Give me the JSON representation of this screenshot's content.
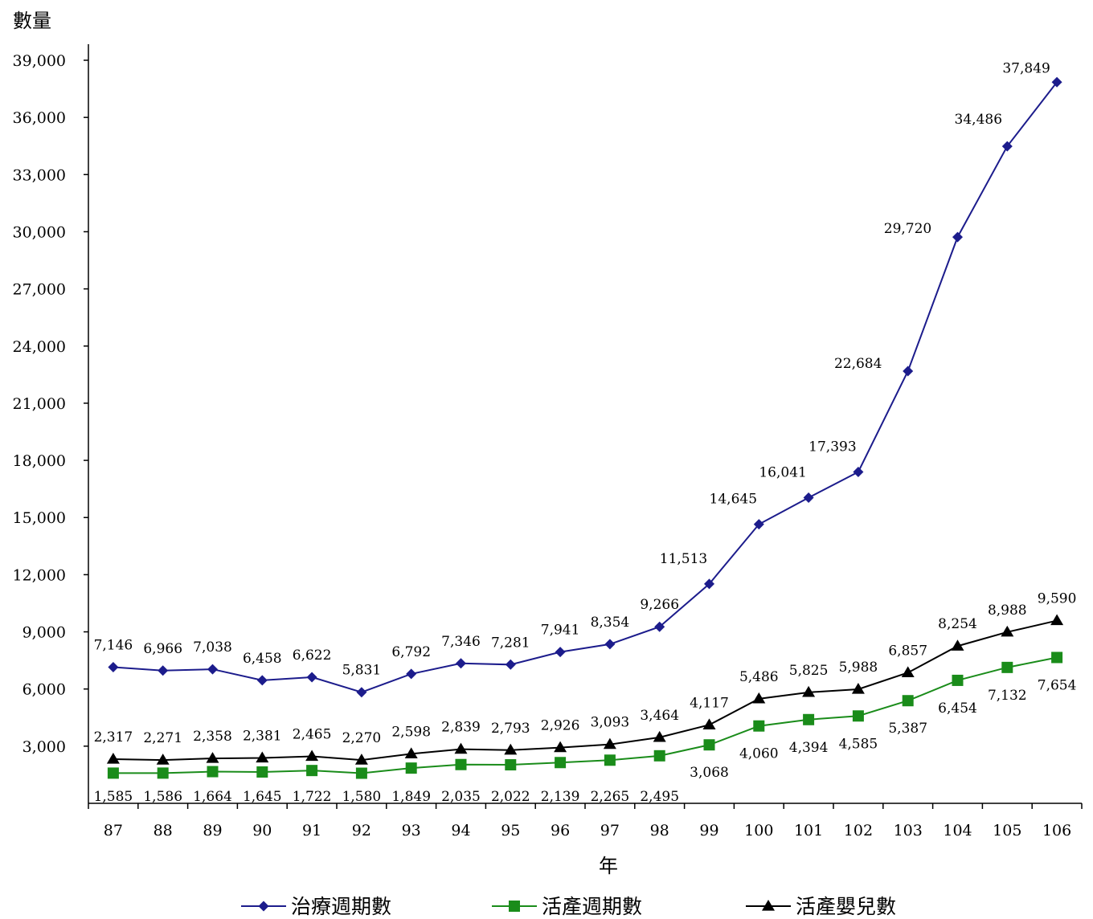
{
  "chart_data": {
    "type": "line",
    "ylabel": "數量",
    "xlabel": "年",
    "ylim": [
      0,
      39000
    ],
    "y_ticks": [
      "3,000",
      "6,000",
      "9,000",
      "12,000",
      "15,000",
      "18,000",
      "21,000",
      "24,000",
      "27,000",
      "30,000",
      "33,000",
      "36,000",
      "39,000"
    ],
    "y_tick_values": [
      3000,
      6000,
      9000,
      12000,
      15000,
      18000,
      21000,
      24000,
      27000,
      30000,
      33000,
      36000,
      39000
    ],
    "categories": [
      "87",
      "88",
      "89",
      "90",
      "91",
      "92",
      "93",
      "94",
      "95",
      "96",
      "97",
      "98",
      "99",
      "100",
      "101",
      "102",
      "103",
      "104",
      "105",
      "106"
    ],
    "grid": false,
    "legend_position": "bottom",
    "series": [
      {
        "name": "治療週期數",
        "color": "#1c1c8c",
        "marker": "diamond",
        "values": [
          7146,
          6966,
          7038,
          6458,
          6622,
          5831,
          6792,
          7346,
          7281,
          7941,
          8354,
          9266,
          11513,
          14645,
          16041,
          17393,
          22684,
          29720,
          34486,
          37849
        ],
        "labels": [
          "7,146",
          "6,966",
          "7,038",
          "6,458",
          "6,622",
          "5,831",
          "6,792",
          "7,346",
          "7,281",
          "7,941",
          "8,354",
          "9,266",
          "11,513",
          "14,645",
          "16,041",
          "17,393",
          "22,684",
          "29,720",
          "34,486",
          "37,849"
        ]
      },
      {
        "name": "活產週期數",
        "color": "#1a8c1a",
        "marker": "square",
        "values": [
          1585,
          1586,
          1664,
          1645,
          1722,
          1580,
          1849,
          2035,
          2022,
          2139,
          2265,
          2495,
          3068,
          4060,
          4394,
          4585,
          5387,
          6454,
          7132,
          7654
        ],
        "labels": [
          "1,585",
          "1,586",
          "1,664",
          "1,645",
          "1,722",
          "1,580",
          "1,849",
          "2,035",
          "2,022",
          "2,139",
          "2,265",
          "2,495",
          "3,068",
          "4,060",
          "4,394",
          "4,585",
          "5,387",
          "6,454",
          "7,132",
          "7,654"
        ]
      },
      {
        "name": "活產嬰兒數",
        "color": "#000000",
        "marker": "triangle",
        "values": [
          2317,
          2271,
          2358,
          2381,
          2465,
          2270,
          2598,
          2839,
          2793,
          2926,
          3093,
          3464,
          4117,
          5486,
          5825,
          5988,
          6857,
          8254,
          8988,
          9590
        ],
        "labels": [
          "2,317",
          "2,271",
          "2,358",
          "2,381",
          "2,465",
          "2,270",
          "2,598",
          "2,839",
          "2,793",
          "2,926",
          "3,093",
          "3,464",
          "4,117",
          "5,486",
          "5,825",
          "5,988",
          "6,857",
          "8,254",
          "8,988",
          "9,590"
        ]
      }
    ]
  }
}
